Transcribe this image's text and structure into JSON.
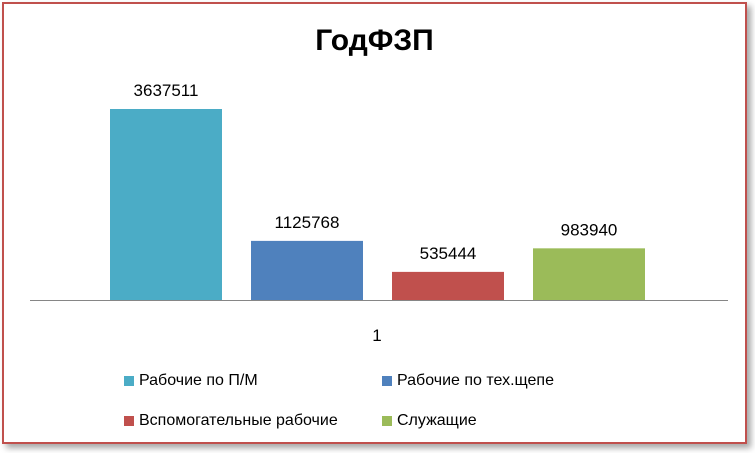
{
  "chart_data": {
    "type": "bar",
    "title": "ГодФЗП",
    "categories": [
      "1"
    ],
    "series": [
      {
        "name": "Рабочие по П/М",
        "values": [
          3637511
        ],
        "color": "#4bacc6"
      },
      {
        "name": "Рабочие по тех.щепе",
        "values": [
          1125768
        ],
        "color": "#4f81bd"
      },
      {
        "name": "Вспомогательные рабочие",
        "values": [
          535444
        ],
        "color": "#c0504d"
      },
      {
        "name": "Служащие",
        "values": [
          983940
        ],
        "color": "#9bbb59"
      }
    ],
    "ylim": [
      0,
      3637511
    ],
    "grid": false,
    "legend_position": "bottom"
  }
}
